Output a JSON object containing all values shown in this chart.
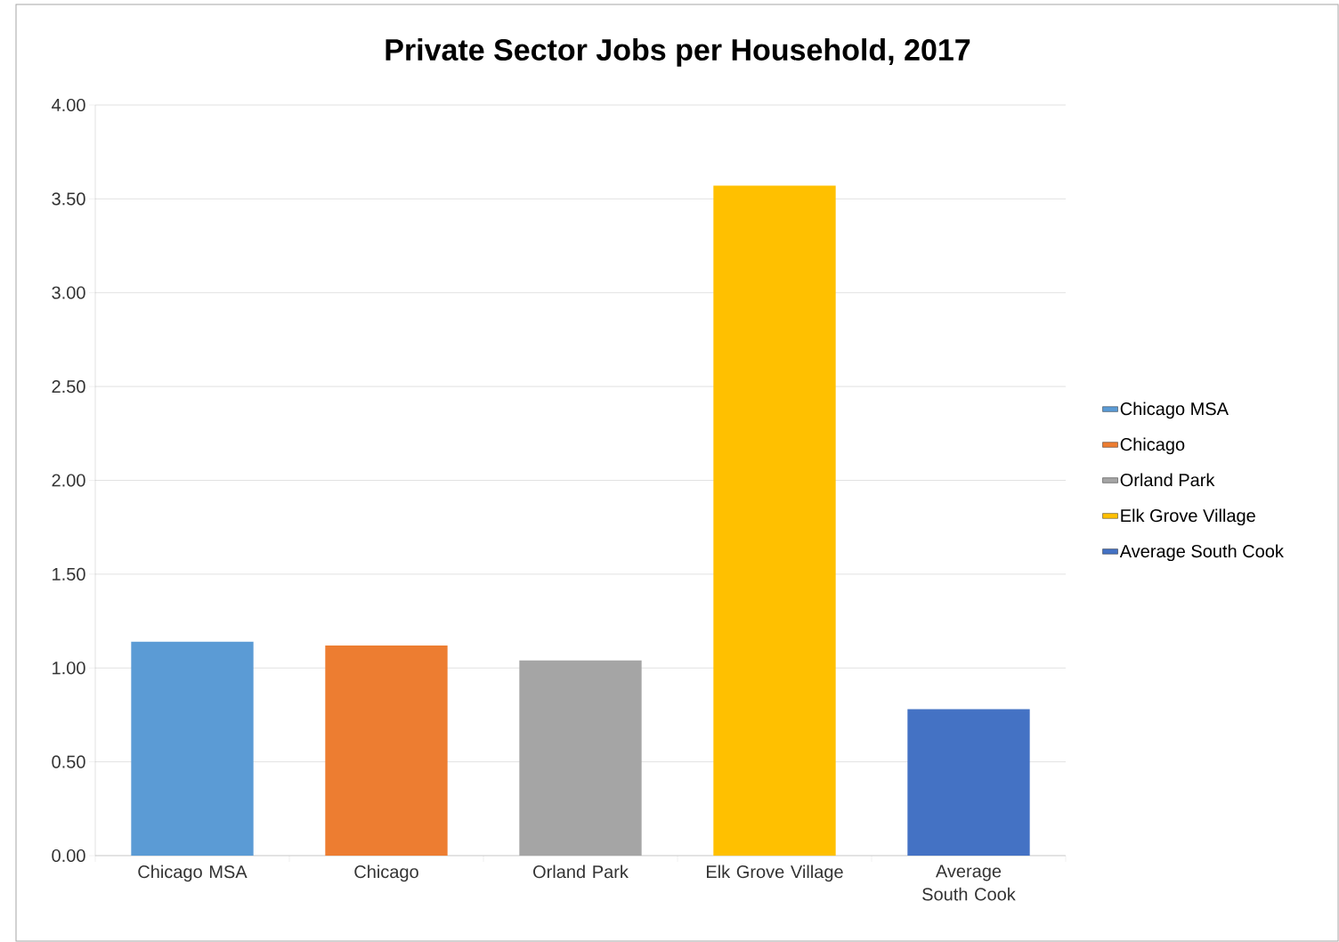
{
  "chart_data": {
    "type": "bar",
    "title": "Private Sector Jobs per Household, 2017",
    "categories": [
      "Chicago MSA",
      "Chicago",
      "Orland Park",
      "Elk Grove Village",
      "Average South Cook"
    ],
    "series": [
      {
        "name": "Chicago MSA",
        "color": "#5b9bd5",
        "values": [
          1.14,
          null,
          null,
          null,
          null
        ]
      },
      {
        "name": "Chicago",
        "color": "#ed7d31",
        "values": [
          null,
          1.12,
          null,
          null,
          null
        ]
      },
      {
        "name": "Orland Park",
        "color": "#a5a5a5",
        "values": [
          null,
          null,
          1.04,
          null,
          null
        ]
      },
      {
        "name": "Elk Grove Village",
        "color": "#ffc000",
        "values": [
          null,
          null,
          null,
          3.57,
          null
        ]
      },
      {
        "name": "Average South Cook",
        "color": "#4472c4",
        "values": [
          null,
          null,
          null,
          null,
          0.78
        ]
      }
    ],
    "ylim": [
      0,
      4
    ],
    "yticks": [
      {
        "value": 0,
        "label": "0.00"
      },
      {
        "value": 0.5,
        "label": "0.50"
      },
      {
        "value": 1,
        "label": "1.00"
      },
      {
        "value": 1.5,
        "label": "1.50"
      },
      {
        "value": 2,
        "label": "2.00"
      },
      {
        "value": 2.5,
        "label": "2.50"
      },
      {
        "value": 3,
        "label": "3.00"
      },
      {
        "value": 3.5,
        "label": "3.50"
      },
      {
        "value": 4,
        "label": "4.00"
      }
    ],
    "grid": "y",
    "legend": "right"
  }
}
